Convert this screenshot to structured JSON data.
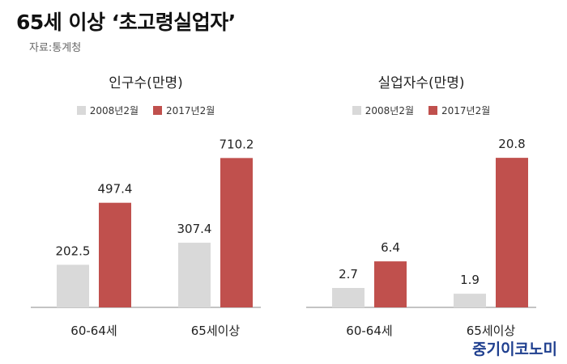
{
  "title": "65세 이상 ‘초고령실업자’",
  "source": "자료:통계청",
  "brand": "중기이코노미",
  "colors": {
    "series_2008": "#d9d9d9",
    "series_2017": "#c0504d",
    "axis": "#888888"
  },
  "chart_data": [
    {
      "type": "bar",
      "title": "인구수(만명)",
      "categories": [
        "60-64세",
        "65세이상"
      ],
      "series": [
        {
          "name": "2008년2월",
          "values": [
            202.5,
            307.4
          ]
        },
        {
          "name": "2017년2월",
          "values": [
            497.4,
            710.2
          ]
        }
      ],
      "value_labels": [
        [
          "202.5",
          "307.4"
        ],
        [
          "497.4",
          "710.2"
        ]
      ],
      "ylim": [
        0,
        800
      ],
      "legend": "top",
      "grid": false
    },
    {
      "type": "bar",
      "title": "실업자수(만명)",
      "categories": [
        "60-64세",
        "65세이상"
      ],
      "series": [
        {
          "name": "2008년2월",
          "values": [
            2.7,
            1.9
          ]
        },
        {
          "name": "2017년2월",
          "values": [
            6.4,
            20.8
          ]
        }
      ],
      "value_labels": [
        [
          "2.7",
          "1.9"
        ],
        [
          "6.4",
          "20.8"
        ]
      ],
      "ylim": [
        0,
        23.4
      ],
      "legend": "top",
      "grid": false
    }
  ]
}
